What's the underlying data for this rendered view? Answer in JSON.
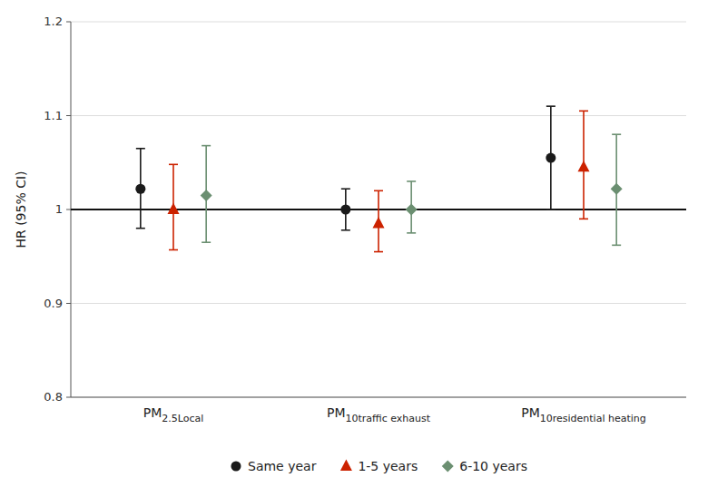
{
  "chart_data": {
    "type": "errorbar",
    "ylabel": "HR (95% CI)",
    "categories": [
      "PM2.5Local",
      "PM10traffic exhaust",
      "PM10residential heating"
    ],
    "series": [
      {
        "name": "Same year",
        "color": "#1a1a1a",
        "marker": "circle",
        "values": [
          1.022,
          1.0,
          1.055
        ],
        "ci_lo": [
          0.98,
          0.978,
          1.0
        ],
        "ci_hi": [
          1.065,
          1.022,
          1.11
        ]
      },
      {
        "name": "1-5 years",
        "color": "#cc2200",
        "marker": "triangle",
        "values": [
          1.0,
          0.985,
          1.045
        ],
        "ci_lo": [
          0.957,
          0.955,
          0.99
        ],
        "ci_hi": [
          1.048,
          1.02,
          1.105
        ]
      },
      {
        "name": "6-10 years",
        "color": "#6b8f71",
        "marker": "diamond",
        "values": [
          1.015,
          1.0,
          1.022
        ],
        "ci_lo": [
          0.965,
          0.975,
          0.962
        ],
        "ci_hi": [
          1.068,
          1.03,
          1.08
        ]
      }
    ],
    "reference_line": 1.0,
    "ylim": [
      0.8,
      1.2
    ],
    "yticks": [
      0.8,
      0.9,
      1,
      1.1,
      1.2
    ],
    "grid": true,
    "legend": "bottom"
  }
}
